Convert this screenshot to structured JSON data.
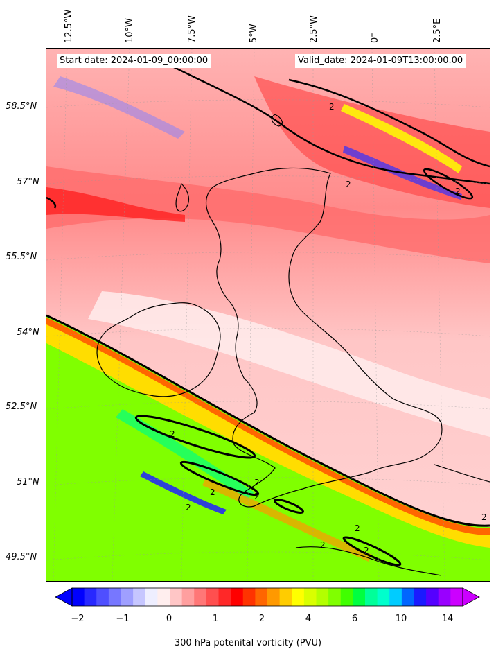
{
  "header": {
    "start_date": "Start date: 2024-01-09_00:00:00",
    "valid_date": "Valid_date: 2024-01-09T13:00:00.00"
  },
  "axes": {
    "longitude_labels": [
      "12.5°W",
      "10°W",
      "7.5°W",
      "5°W",
      "2.5°W",
      "0°",
      "2.5°E"
    ],
    "latitude_labels": [
      "58.5°N",
      "57°N",
      "55.5°N",
      "54°N",
      "52.5°N",
      "51°N",
      "49.5°N"
    ]
  },
  "contour_labels": [
    "2",
    "2",
    "2",
    "2",
    "2",
    "2",
    "2",
    "2",
    "2",
    "2",
    "2",
    "2"
  ],
  "colorbar": {
    "label": "300 hPa potenital vorticity (PVU)",
    "tick_labels": [
      "−2",
      "−1",
      "0",
      "1",
      "2",
      "4",
      "6",
      "10",
      "14"
    ],
    "colors": [
      "#0000ff",
      "#2828ff",
      "#4f4fff",
      "#7777ff",
      "#9f9fff",
      "#c6c6ff",
      "#eeeeff",
      "#ffeeee",
      "#ffc6c6",
      "#ff9f9f",
      "#ff7777",
      "#ff4f4f",
      "#ff2828",
      "#ff0000",
      "#ff3300",
      "#ff6600",
      "#ff9900",
      "#ffcc00",
      "#ffff00",
      "#d9ff00",
      "#b3ff00",
      "#80ff00",
      "#40ff00",
      "#00ff40",
      "#00ff99",
      "#00ffcc",
      "#00ccff",
      "#0066ff",
      "#1a1aff",
      "#5500ff",
      "#9900ff",
      "#cc00ff"
    ],
    "extend": "both"
  },
  "field": {
    "variable": "300 hPa potential vorticity",
    "units": "PVU",
    "contour_level": 2,
    "background_colors": {
      "high_pv_south": "#7fff00",
      "moderate_pv": "#ff9090",
      "low_pv": "#ffe4e4"
    }
  }
}
